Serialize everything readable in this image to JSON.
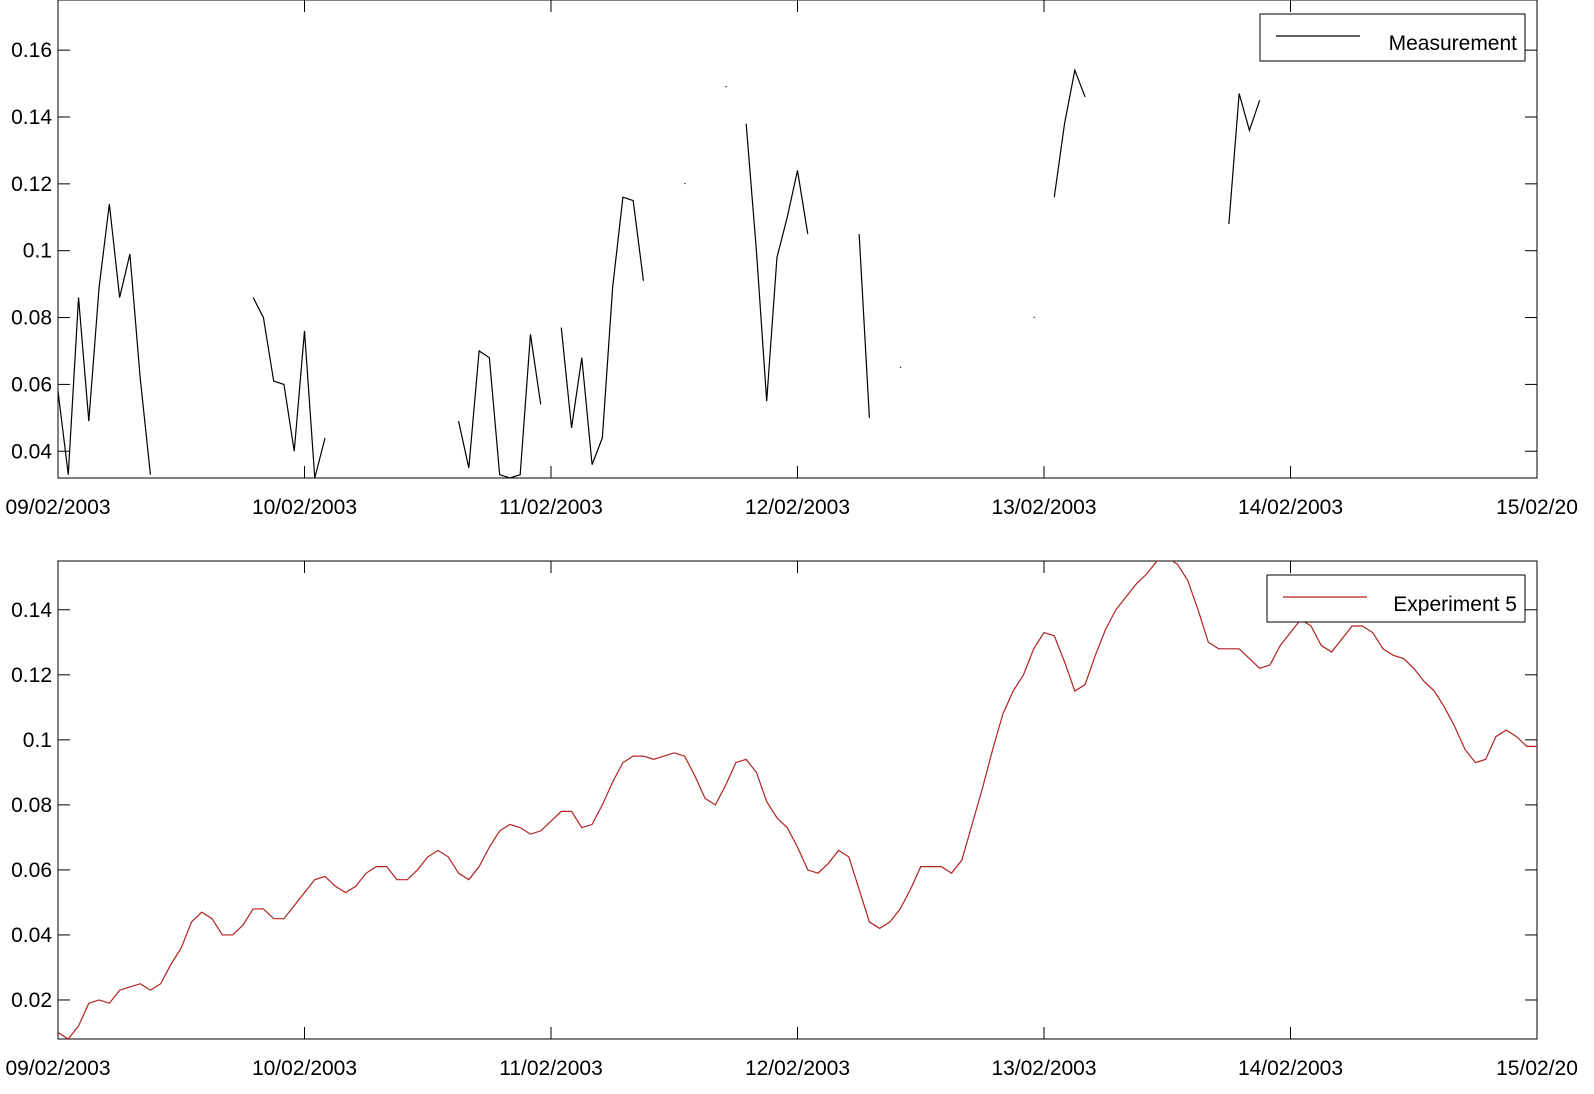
{
  "chart_data": [
    {
      "type": "line",
      "title": "",
      "xlabel": "",
      "ylabel": "",
      "x_ticks": [
        "09/02/2003",
        "10/02/2003",
        "11/02/2003",
        "12/02/2003",
        "13/02/2003",
        "14/02/2003",
        "15/02/20"
      ],
      "xlim": [
        "09/02/2003",
        "15/02/2003"
      ],
      "ylim": [
        0.032,
        0.175
      ],
      "y_ticks": [
        "0.04",
        "0.06",
        "0.08",
        "0.1",
        "0.12",
        "0.14",
        "0.16"
      ],
      "grid": false,
      "legend_position": "top-right",
      "series": [
        {
          "name": "Measurement",
          "color": "#000000",
          "segments": [
            [
              [
                "09/02/2003 00:00",
                0.058
              ],
              [
                "09/02/2003 01:00",
                0.033
              ],
              [
                "09/02/2003 02:00",
                0.086
              ],
              [
                "09/02/2003 03:00",
                0.049
              ],
              [
                "09/02/2003 04:00",
                0.089
              ],
              [
                "09/02/2003 05:00",
                0.114
              ],
              [
                "09/02/2003 06:00",
                0.086
              ],
              [
                "09/02/2003 07:00",
                0.099
              ],
              [
                "09/02/2003 08:00",
                0.062
              ],
              [
                "09/02/2003 09:00",
                0.033
              ]
            ],
            [
              [
                "09/02/2003 19:00",
                0.086
              ],
              [
                "09/02/2003 20:00",
                0.08
              ],
              [
                "09/02/2003 21:00",
                0.061
              ],
              [
                "09/02/2003 22:00",
                0.06
              ],
              [
                "09/02/2003 23:00",
                0.04
              ],
              [
                "10/02/2003 00:00",
                0.076
              ],
              [
                "10/02/2003 01:00",
                0.032
              ],
              [
                "10/02/2003 02:00",
                0.044
              ]
            ],
            [
              [
                "10/02/2003 15:00",
                0.049
              ],
              [
                "10/02/2003 16:00",
                0.035
              ],
              [
                "10/02/2003 17:00",
                0.07
              ],
              [
                "10/02/2003 18:00",
                0.068
              ],
              [
                "10/02/2003 19:00",
                0.033
              ],
              [
                "10/02/2003 20:00",
                0.032
              ],
              [
                "10/02/2003 21:00",
                0.033
              ],
              [
                "10/02/2003 22:00",
                0.075
              ],
              [
                "10/02/2003 23:00",
                0.054
              ]
            ],
            [
              [
                "11/02/2003 01:00",
                0.077
              ],
              [
                "11/02/2003 02:00",
                0.047
              ],
              [
                "11/02/2003 03:00",
                0.068
              ],
              [
                "11/02/2003 04:00",
                0.036
              ],
              [
                "11/02/2003 05:00",
                0.044
              ],
              [
                "11/02/2003 06:00",
                0.089
              ],
              [
                "11/02/2003 07:00",
                0.116
              ],
              [
                "11/02/2003 08:00",
                0.115
              ],
              [
                "11/02/2003 09:00",
                0.091
              ]
            ],
            [
              [
                "11/02/2003 13:00",
                0.12
              ],
              [
                "11/02/2003 13:05",
                0.1202
              ]
            ],
            [
              [
                "11/02/2003 17:00",
                0.149
              ],
              [
                "11/02/2003 17:05",
                0.1492
              ]
            ],
            [
              [
                "11/02/2003 19:00",
                0.138
              ],
              [
                "11/02/2003 20:00",
                0.1
              ],
              [
                "11/02/2003 21:00",
                0.055
              ],
              [
                "11/02/2003 22:00",
                0.098
              ],
              [
                "11/02/2003 23:00",
                0.11
              ],
              [
                "12/02/2003 00:00",
                0.124
              ],
              [
                "12/02/2003 01:00",
                0.105
              ]
            ],
            [
              [
                "12/02/2003 06:00",
                0.105
              ],
              [
                "12/02/2003 07:00",
                0.05
              ]
            ],
            [
              [
                "12/02/2003 10:00",
                0.065
              ],
              [
                "12/02/2003 10:05",
                0.0652
              ]
            ],
            [
              [
                "12/02/2003 23:00",
                0.08
              ],
              [
                "12/02/2003 23:05",
                0.0802
              ]
            ],
            [
              [
                "13/02/2003 01:00",
                0.116
              ],
              [
                "13/02/2003 02:00",
                0.138
              ],
              [
                "13/02/2003 03:00",
                0.154
              ],
              [
                "13/02/2003 04:00",
                0.146
              ]
            ],
            [
              [
                "13/02/2003 18:00",
                0.108
              ],
              [
                "13/02/2003 19:00",
                0.147
              ],
              [
                "13/02/2003 20:00",
                0.136
              ],
              [
                "13/02/2003 21:00",
                0.145
              ]
            ]
          ]
        }
      ]
    },
    {
      "type": "line",
      "title": "",
      "xlabel": "",
      "ylabel": "",
      "x_ticks": [
        "09/02/2003",
        "10/02/2003",
        "11/02/2003",
        "12/02/2003",
        "13/02/2003",
        "14/02/2003",
        "15/02/20"
      ],
      "xlim": [
        "09/02/2003",
        "15/02/2003"
      ],
      "ylim": [
        0.008,
        0.155
      ],
      "y_ticks": [
        "0.02",
        "0.04",
        "0.06",
        "0.08",
        "0.1",
        "0.12",
        "0.14"
      ],
      "grid": false,
      "legend_position": "top-right",
      "series": [
        {
          "name": "Experiment 5",
          "color": "#b22222",
          "step_hours": 1,
          "start": "09/02/2003 00:00",
          "values": [
            0.01,
            0.008,
            0.012,
            0.019,
            0.02,
            0.019,
            0.023,
            0.024,
            0.025,
            0.023,
            0.025,
            0.031,
            0.036,
            0.044,
            0.047,
            0.045,
            0.04,
            0.04,
            0.043,
            0.048,
            0.048,
            0.045,
            0.045,
            0.049,
            0.053,
            0.057,
            0.058,
            0.055,
            0.053,
            0.055,
            0.059,
            0.061,
            0.061,
            0.057,
            0.057,
            0.06,
            0.064,
            0.066,
            0.064,
            0.059,
            0.057,
            0.061,
            0.067,
            0.072,
            0.074,
            0.073,
            0.071,
            0.072,
            0.075,
            0.078,
            0.078,
            0.073,
            0.074,
            0.08,
            0.087,
            0.093,
            0.095,
            0.095,
            0.094,
            0.095,
            0.096,
            0.095,
            0.089,
            0.082,
            0.08,
            0.086,
            0.093,
            0.094,
            0.09,
            0.081,
            0.076,
            0.073,
            0.067,
            0.06,
            0.059,
            0.062,
            0.066,
            0.064,
            0.054,
            0.044,
            0.042,
            0.044,
            0.048,
            0.054,
            0.061,
            0.061,
            0.061,
            0.059,
            0.063,
            0.074,
            0.085,
            0.097,
            0.108,
            0.115,
            0.12,
            0.128,
            0.133,
            0.132,
            0.124,
            0.115,
            0.117,
            0.126,
            0.134,
            0.14,
            0.144,
            0.148,
            0.151,
            0.155,
            0.156,
            0.154,
            0.149,
            0.14,
            0.13,
            0.128,
            0.128,
            0.128,
            0.125,
            0.122,
            0.123,
            0.129,
            0.133,
            0.137,
            0.135,
            0.129,
            0.127,
            0.131,
            0.135,
            0.135,
            0.133,
            0.128,
            0.126,
            0.125,
            0.122,
            0.118,
            0.115,
            0.11,
            0.104,
            0.097,
            0.093,
            0.094,
            0.101,
            0.103,
            0.101,
            0.098,
            0.098
          ]
        }
      ]
    }
  ]
}
